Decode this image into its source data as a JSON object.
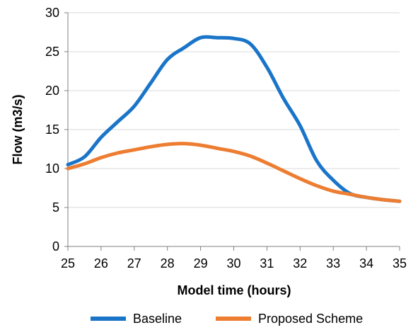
{
  "chart_data": {
    "type": "line",
    "xlabel": "Model time (hours)",
    "ylabel": "Flow (m3/s)",
    "xlim": [
      25,
      35
    ],
    "ylim": [
      0,
      30
    ],
    "x_ticks": [
      "25",
      "26",
      "27",
      "28",
      "29",
      "30",
      "31",
      "32",
      "33",
      "34",
      "35"
    ],
    "y_ticks": [
      "0",
      "5",
      "10",
      "15",
      "20",
      "25",
      "30"
    ],
    "grid": "horizontal",
    "legend_position": "bottom",
    "series": [
      {
        "name": "Baseline",
        "color": "#1a75c9",
        "x": [
          25,
          25.5,
          26,
          26.5,
          27,
          27.5,
          28,
          28.5,
          29,
          29.5,
          30,
          30.5,
          31,
          31.5,
          32,
          32.5,
          33,
          33.5,
          34,
          34.5,
          35
        ],
        "y": [
          10.5,
          11.5,
          14.0,
          16.0,
          18.0,
          21.0,
          24.0,
          25.5,
          26.8,
          26.8,
          26.7,
          26.0,
          23.0,
          19.0,
          15.5,
          11.0,
          8.5,
          6.8,
          6.3,
          6.0,
          5.8
        ]
      },
      {
        "name": "Proposed Scheme",
        "color": "#ed7d31",
        "x": [
          25,
          25.5,
          26,
          26.5,
          27,
          27.5,
          28,
          28.5,
          29,
          29.5,
          30,
          30.5,
          31,
          31.5,
          32,
          32.5,
          33,
          33.5,
          34,
          34.5,
          35
        ],
        "y": [
          10.0,
          10.6,
          11.4,
          12.0,
          12.4,
          12.8,
          13.1,
          13.2,
          13.0,
          12.6,
          12.2,
          11.6,
          10.7,
          9.7,
          8.7,
          7.8,
          7.1,
          6.7,
          6.3,
          6.0,
          5.8
        ]
      }
    ]
  }
}
